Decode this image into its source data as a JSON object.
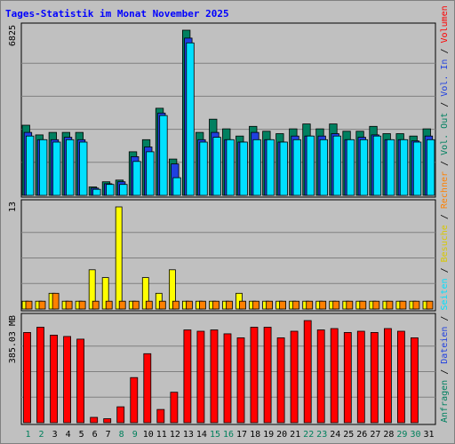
{
  "chart_data": {
    "type": "bar",
    "title": "Tages-Statistik im Monat November 2025",
    "categories": [
      "1",
      "2",
      "3",
      "4",
      "5",
      "6",
      "7",
      "8",
      "9",
      "10",
      "11",
      "12",
      "13",
      "14",
      "15",
      "16",
      "17",
      "18",
      "19",
      "20",
      "21",
      "22",
      "23",
      "24",
      "25",
      "26",
      "27",
      "28",
      "29",
      "30",
      "31"
    ],
    "weekend_days": [
      "1",
      "2",
      "8",
      "9",
      "15",
      "16",
      "22",
      "23",
      "29",
      "30"
    ],
    "colors": {
      "background": "#c0c0c0",
      "title": "#0000ff",
      "weekday_label": "#000000",
      "weekend_label": "#00805c",
      "grid": "#808080",
      "anfragen": "#008060",
      "dateien": "#2040e0",
      "seiten": "#00e0ff",
      "besuche": "#ffff00",
      "rechner": "#ff8000",
      "volumen": "#ff0000",
      "separator": "#000000"
    },
    "panels": [
      {
        "name": "requests",
        "max_label": "6825",
        "ymax": 6825,
        "series": [
          {
            "name": "Anfragen",
            "color": "#008060",
            "values": [
              2900,
              2500,
              2600,
              2600,
              2600,
              350,
              560,
              630,
              1800,
              2300,
              3600,
              1500,
              6825,
              2600,
              3150,
              2750,
              2450,
              2850,
              2650,
              2550,
              2750,
              2950,
              2750,
              2950,
              2650,
              2650,
              2850,
              2550,
              2550,
              2450,
              2750
            ]
          },
          {
            "name": "Dateien",
            "color": "#2040e0",
            "values": [
              2600,
              2300,
              2300,
              2400,
              2300,
              300,
              480,
              560,
              1600,
              2000,
              3400,
              1300,
              6500,
              2300,
              2600,
              2300,
              2200,
              2600,
              2300,
              2200,
              2450,
              2450,
              2450,
              2550,
              2300,
              2400,
              2500,
              2300,
              2300,
              2250,
              2450
            ]
          },
          {
            "name": "Seiten",
            "color": "#00e0ff",
            "values": [
              2450,
              2300,
              2200,
              2300,
              2200,
              250,
              450,
              450,
              1400,
              1800,
              3300,
              730,
              6300,
              2200,
              2400,
              2300,
              2200,
              2300,
              2300,
              2200,
              2300,
              2450,
              2300,
              2450,
              2300,
              2300,
              2450,
              2300,
              2300,
              2200,
              2300
            ]
          }
        ]
      },
      {
        "name": "visits",
        "max_label": "13",
        "ymax": 13,
        "series": [
          {
            "name": "Besuche",
            "color": "#ffff00",
            "values": [
              1,
              1,
              2,
              1,
              1,
              5,
              4,
              13,
              1,
              4,
              2,
              5,
              1,
              1,
              1,
              1,
              2,
              1,
              1,
              1,
              1,
              1,
              1,
              1,
              1,
              1,
              1,
              1,
              1,
              1,
              1
            ]
          },
          {
            "name": "Rechner",
            "color": "#ff8000",
            "values": [
              1,
              1,
              2,
              1,
              1,
              1,
              1,
              1,
              1,
              1,
              1,
              1,
              1,
              1,
              1,
              1,
              1,
              1,
              1,
              1,
              1,
              1,
              1,
              1,
              1,
              1,
              1,
              1,
              1,
              1,
              1
            ]
          }
        ]
      },
      {
        "name": "volume",
        "max_label": "385.03 MB",
        "ymax": 385.03,
        "series": [
          {
            "name": "Volumen",
            "color": "#ff0000",
            "values": [
              340,
              360,
              330,
              325,
              315,
              20,
              15,
              60,
              170,
              260,
              50,
              115,
              350,
              345,
              350,
              335,
              320,
              360,
              360,
              320,
              345,
              385,
              350,
              355,
              340,
              345,
              340,
              355,
              345,
              320,
              0
            ]
          }
        ]
      }
    ],
    "legend_requests": [
      {
        "text": "Anfragen",
        "color": "#008060"
      },
      {
        "text": " / ",
        "color": "#000000"
      },
      {
        "text": "Dateien",
        "color": "#2040e0"
      },
      {
        "text": " / ",
        "color": "#000000"
      },
      {
        "text": "Seiten",
        "color": "#00e0ff"
      },
      {
        "text": " / ",
        "color": "#000000"
      },
      {
        "text": "Besuche",
        "color": "#d8c800"
      },
      {
        "text": " / ",
        "color": "#000000"
      },
      {
        "text": "Rechner",
        "color": "#ff8000"
      },
      {
        "text": " / ",
        "color": "#000000"
      },
      {
        "text": "Vol. Out",
        "color": "#008060"
      },
      {
        "text": " / ",
        "color": "#000000"
      },
      {
        "text": "Vol. In",
        "color": "#2040e0"
      },
      {
        "text": " / ",
        "color": "#000000"
      },
      {
        "text": "Volumen",
        "color": "#ff0000"
      }
    ]
  }
}
